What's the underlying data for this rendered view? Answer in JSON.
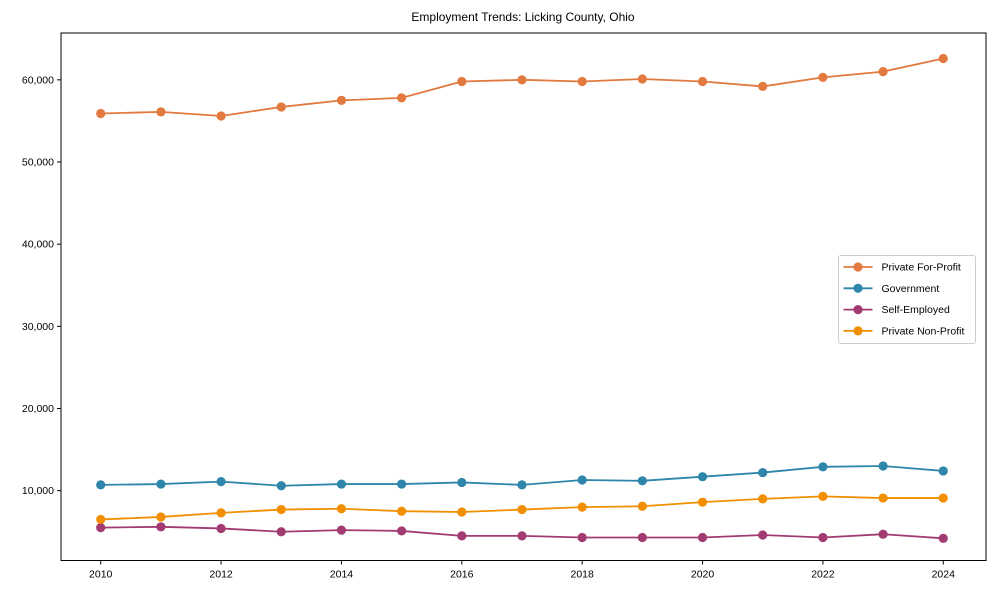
{
  "chart_data": {
    "type": "line",
    "title": "Employment Trends: Licking County, Ohio",
    "x": [
      2010,
      2011,
      2012,
      2013,
      2014,
      2015,
      2016,
      2017,
      2018,
      2019,
      2020,
      2021,
      2022,
      2023,
      2024
    ],
    "series": [
      {
        "name": "Private For-Profit",
        "color": "#E2793E",
        "values": [
          55900,
          56100,
          55600,
          56700,
          57500,
          57800,
          59800,
          60000,
          59800,
          60100,
          59800,
          59200,
          60300,
          61000,
          62600
        ]
      },
      {
        "name": "Government",
        "color": "#2E86AB",
        "values": [
          10700,
          10800,
          11100,
          10600,
          10800,
          10800,
          11000,
          10700,
          11300,
          11200,
          11700,
          12200,
          12900,
          13000,
          12400
        ]
      },
      {
        "name": "Self-Employed",
        "color": "#A23B72",
        "values": [
          5500,
          5600,
          5400,
          5000,
          5200,
          5100,
          4500,
          4500,
          4300,
          4300,
          4300,
          4600,
          4300,
          4700,
          4200
        ]
      },
      {
        "name": "Private Non-Profit",
        "color": "#F18F01",
        "values": [
          6500,
          6800,
          7300,
          7700,
          7800,
          7500,
          7400,
          7700,
          8000,
          8100,
          8600,
          9000,
          9300,
          9100,
          9100
        ]
      }
    ],
    "xlabel": "",
    "ylabel": "",
    "xticks": [
      2010,
      2012,
      2014,
      2016,
      2018,
      2020,
      2022,
      2024
    ],
    "yticks": [
      10000,
      20000,
      30000,
      40000,
      50000,
      60000
    ],
    "ytick_labels": [
      "10,000",
      "20,000",
      "30,000",
      "40,000",
      "50,000",
      "60,000"
    ],
    "xlim": [
      2009.34,
      2024.71
    ],
    "ylim": [
      1500,
      65700
    ],
    "grid": false,
    "legend": {
      "position": "center-right",
      "background": "#ffffff",
      "border_color": "#cccccc"
    },
    "background": "#ffffff",
    "axis_color": "#000000"
  }
}
